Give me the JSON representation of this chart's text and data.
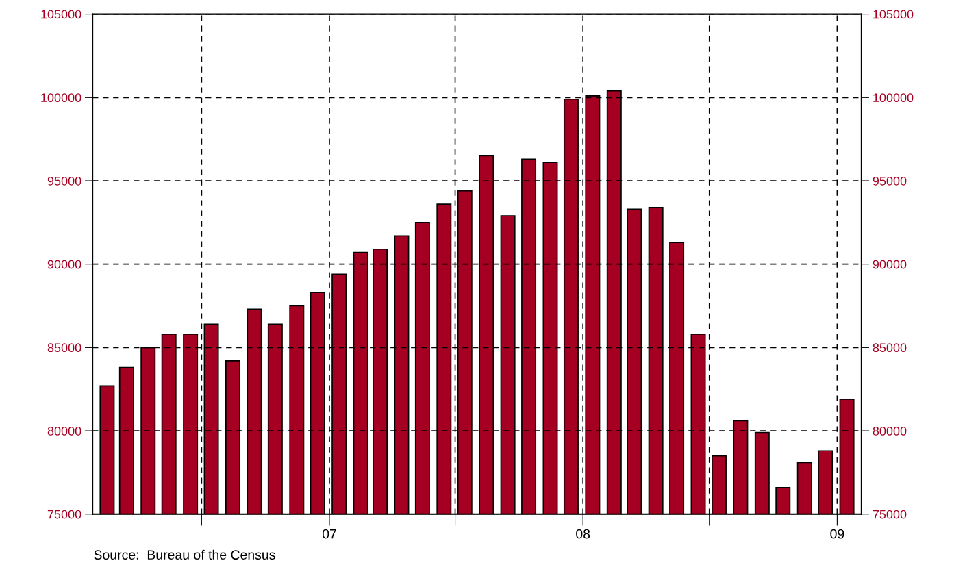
{
  "chart_data": {
    "type": "bar",
    "x": [
      "2006-02-15",
      "2006-03-15",
      "2006-04-15",
      "2006-05-15",
      "2006-06-15",
      "2006-07-15",
      "2006-08-15",
      "2006-09-15",
      "2006-10-15",
      "2006-11-15",
      "2006-12-15",
      "2007-01-15",
      "2007-02-15",
      "2007-03-15",
      "2007-04-15",
      "2007-05-15",
      "2007-06-15",
      "2007-07-15",
      "2007-08-15",
      "2007-09-15",
      "2007-10-15",
      "2007-11-15",
      "2007-12-15",
      "2008-01-15",
      "2008-02-15",
      "2008-03-15",
      "2008-04-15",
      "2008-05-15",
      "2008-06-15",
      "2008-07-15",
      "2008-08-15",
      "2008-09-15",
      "2008-10-15",
      "2008-11-15",
      "2008-12-15",
      "2009-01-15"
    ],
    "values": [
      82700,
      83800,
      85000,
      85800,
      85800,
      86400,
      84200,
      87300,
      86400,
      87500,
      88300,
      89400,
      90700,
      90900,
      91700,
      92500,
      93600,
      94400,
      96500,
      92900,
      96300,
      96100,
      99900,
      100100,
      100400,
      93300,
      93400,
      91300,
      85800,
      78500,
      80600,
      79900,
      76600,
      78100,
      78800,
      81900
    ],
    "color": "#a50021",
    "xlim": [
      "2006-01-25",
      "2009-02-05"
    ],
    "xticks": [
      {
        "value": "2006-07-01",
        "label": null
      },
      {
        "value": "2007-01-01",
        "label": "07"
      },
      {
        "value": "2007-07-01",
        "label": null
      },
      {
        "value": "2008-01-01",
        "label": "08"
      },
      {
        "value": "2008-07-01",
        "label": null
      },
      {
        "value": "2009-01-01",
        "label": "09"
      }
    ],
    "ylim": [
      75000,
      105000
    ],
    "yticks": [
      75000,
      80000,
      85000,
      90000,
      95000,
      100000,
      105000
    ],
    "y2lim": [
      75000,
      105000
    ],
    "y2ticks": [
      75000,
      80000,
      85000,
      90000,
      95000,
      100000,
      105000
    ],
    "grid": true,
    "annotations": [
      "Source:  Bureau of the Census"
    ]
  }
}
